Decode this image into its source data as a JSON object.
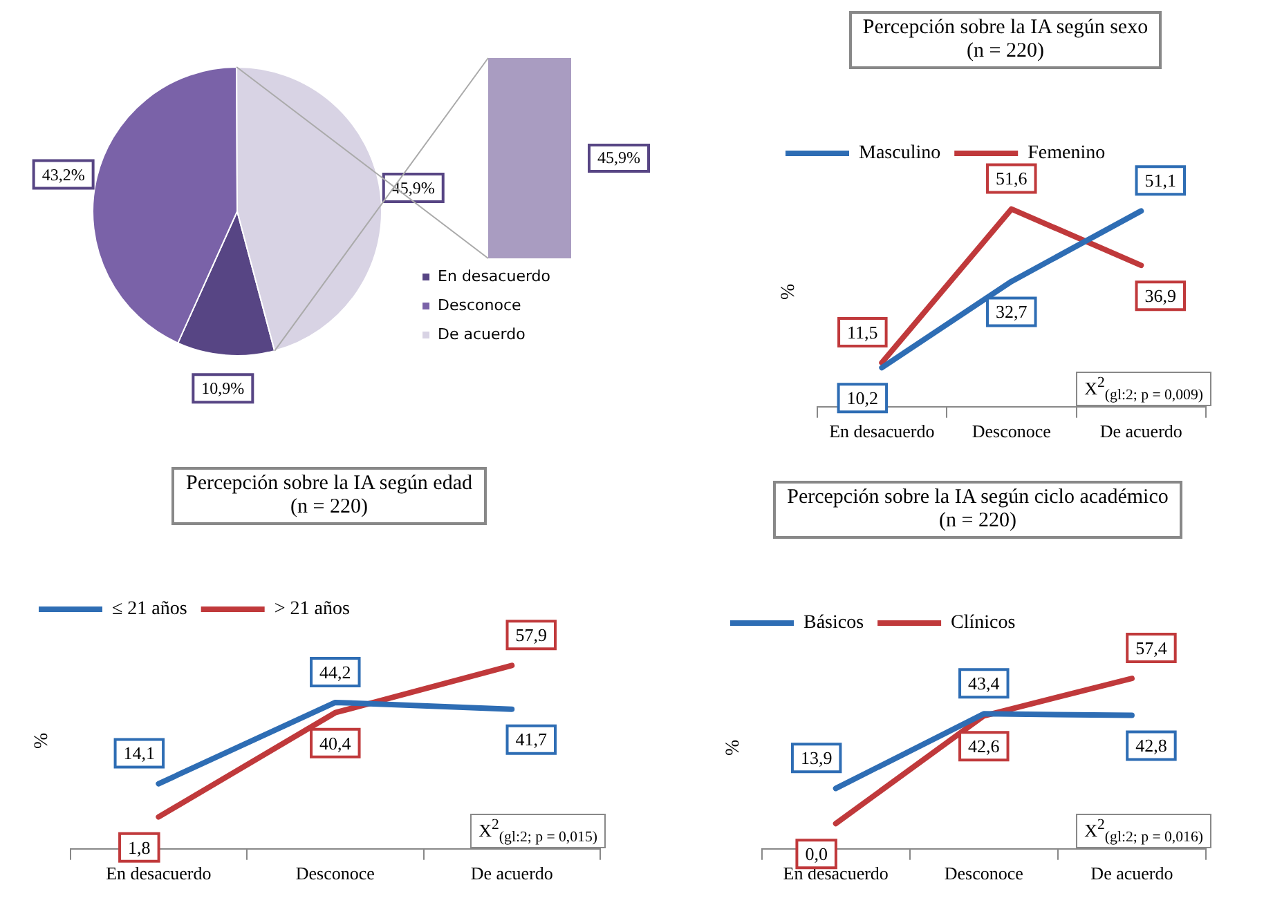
{
  "chart_data": [
    {
      "type": "pie",
      "categories": [
        "En desacuerdo",
        "Desconoce",
        "De acuerdo"
      ],
      "values": [
        10.9,
        43.2,
        45.9
      ],
      "value_labels": [
        "10,9%",
        "43,2%",
        "45,9%"
      ],
      "colors": [
        "#574584",
        "#7a62a8",
        "#d8d3e4"
      ],
      "legend": "bottom right",
      "annotations": [
        "45,9%"
      ]
    },
    {
      "type": "line",
      "title": "Percepción sobre la IA según sexo",
      "subtitle": "(n = 220)",
      "ylabel": "%",
      "categories": [
        "En desacuerdo",
        "Desconoce",
        "De acuerdo"
      ],
      "series": [
        {
          "name": "Masculino",
          "color": "#2e6db4",
          "values": [
            10.2,
            32.7,
            51.1
          ],
          "value_labels": [
            "10,2",
            "32,7",
            "51,1"
          ]
        },
        {
          "name": "Femenino",
          "color": "#c0393b",
          "values": [
            11.5,
            51.6,
            36.9
          ],
          "value_labels": [
            "11,5",
            "51,6",
            "36,9"
          ]
        }
      ],
      "legend": "top left",
      "tick_labels": "x",
      "marker": "none",
      "annotations": [
        "X$^{2}$$_{(gl:2; p = 0,009)}$"
      ]
    },
    {
      "type": "line",
      "title": "Percepción sobre la IA según edad",
      "subtitle": "(n = 220)",
      "ylabel": "%",
      "categories": [
        "En desacuerdo",
        "Desconoce",
        "De acuerdo"
      ],
      "series": [
        {
          "name": "≤ 21 años",
          "color": "#2e6db4",
          "values": [
            14.1,
            44.2,
            41.7
          ],
          "value_labels": [
            "14,1",
            "44,2",
            "41,7"
          ]
        },
        {
          "name": "> 21 años",
          "color": "#c0393b",
          "values": [
            1.8,
            40.4,
            57.9
          ],
          "value_labels": [
            "1,8",
            "40,4",
            "57,9"
          ]
        }
      ],
      "legend": "top left",
      "tick_labels": "x",
      "marker": "none",
      "annotations": [
        "X$^{2}$$_{(gl:2; p = 0,015)}$"
      ]
    },
    {
      "type": "line",
      "title": "Percepción sobre la IA según ciclo académico",
      "subtitle": "(n = 220)",
      "ylabel": "%",
      "categories": [
        "En desacuerdo",
        "Desconoce",
        "De acuerdo"
      ],
      "series": [
        {
          "name": "Básicos",
          "color": "#2e6db4",
          "values": [
            13.9,
            43.4,
            42.8
          ],
          "value_labels": [
            "13,9",
            "43,4",
            "42,8"
          ]
        },
        {
          "name": "Clínicos",
          "color": "#c0393b",
          "values": [
            0.0,
            42.6,
            57.4
          ],
          "value_labels": [
            "0,0",
            "42,6",
            "57,4"
          ]
        }
      ],
      "legend": "top left",
      "tick_labels": "x",
      "marker": "none",
      "annotations": [
        "X$^{2}$$_{(gl:2; p = 0,016)}$"
      ]
    }
  ]
}
